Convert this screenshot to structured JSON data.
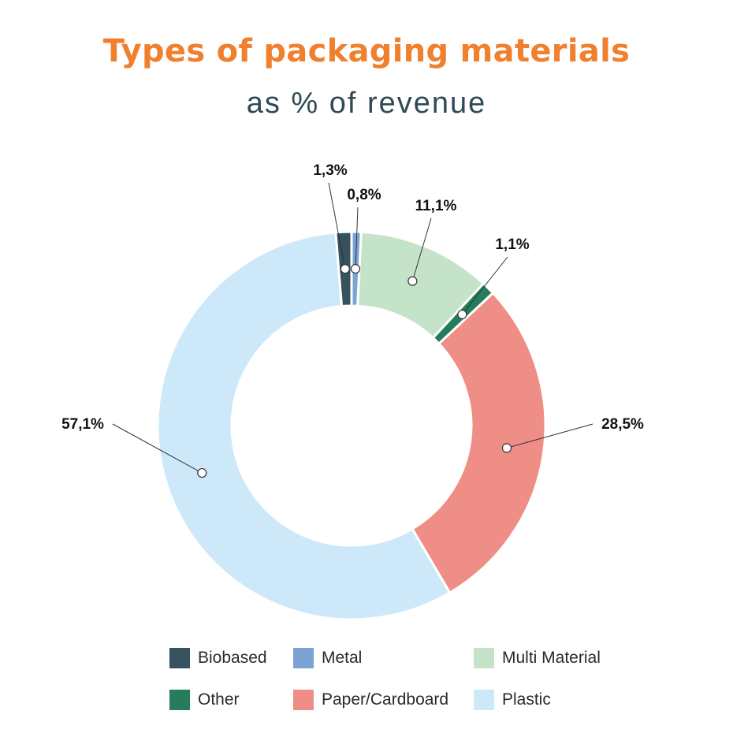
{
  "chart_data": {
    "type": "pie",
    "variant": "donut",
    "title": "Types of packaging materials",
    "subtitle": "as % of revenue",
    "start_angle_note": "clockwise from 12 o'clock",
    "slices": [
      {
        "name": "Metal",
        "value": 0.8,
        "label": "0,8%",
        "color": "#7ba4d4"
      },
      {
        "name": "Multi Material",
        "value": 11.1,
        "label": "11,1%",
        "color": "#c5e3c8"
      },
      {
        "name": "Other",
        "value": 1.1,
        "label": "1,1%",
        "color": "#267d5b"
      },
      {
        "name": "Paper/Cardboard",
        "value": 28.5,
        "label": "28,5%",
        "color": "#ef8e86"
      },
      {
        "name": "Plastic",
        "value": 57.1,
        "label": "57,1%",
        "color": "#cde9f9"
      },
      {
        "name": "Biobased",
        "value": 1.3,
        "label": "1,3%",
        "color": "#35525e"
      }
    ],
    "legend": {
      "placement": "bottom",
      "items": [
        "Biobased",
        "Metal",
        "Multi Material",
        "Other",
        "Paper/Cardboard",
        "Plastic"
      ]
    }
  }
}
